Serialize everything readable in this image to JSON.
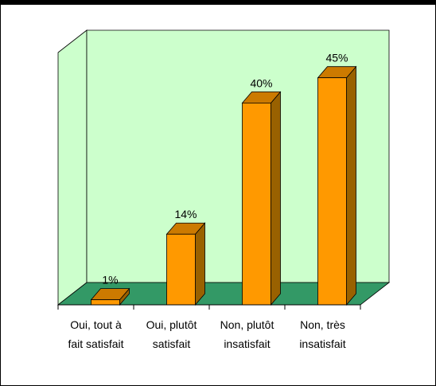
{
  "chart_data": {
    "type": "bar",
    "title": "",
    "xlabel": "",
    "ylabel": "",
    "categories": [
      [
        "Oui, tout à",
        "fait satisfait"
      ],
      [
        "Oui, plutôt",
        "satisfait"
      ],
      [
        "Non, plutôt",
        "insatisfait"
      ],
      [
        "Non, très",
        "insatisfait"
      ]
    ],
    "values": [
      1,
      14,
      40,
      45
    ],
    "data_labels": [
      "1%",
      "14%",
      "40%",
      "45%"
    ],
    "ylim": [
      0,
      50
    ],
    "grid": false,
    "legend": "none",
    "colors": {
      "bar_front": "#ff9900",
      "bar_side": "#996100",
      "bar_top": "#cc7a00",
      "back_wall": "#ccffcc",
      "floor": "#339966"
    }
  }
}
